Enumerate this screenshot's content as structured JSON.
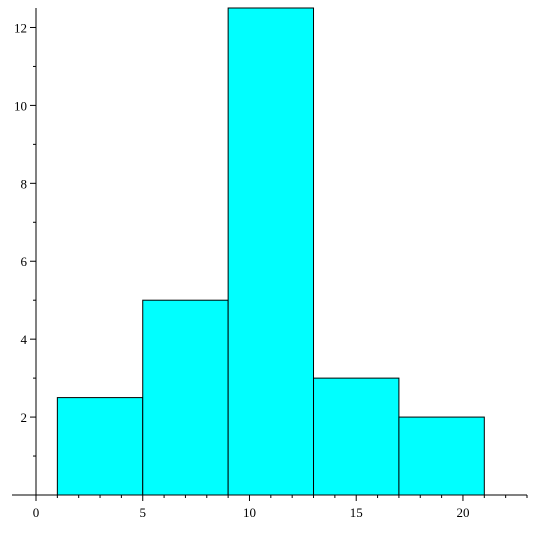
{
  "chart_data": {
    "type": "bar",
    "title": "",
    "xlabel": "",
    "ylabel": "",
    "bar_color": "#00FFFF",
    "bins": [
      {
        "start": 1,
        "end": 5,
        "value": 2.5
      },
      {
        "start": 5,
        "end": 9,
        "value": 5
      },
      {
        "start": 9,
        "end": 13,
        "value": 12.5
      },
      {
        "start": 13,
        "end": 17,
        "value": 3
      },
      {
        "start": 17,
        "end": 21,
        "value": 2
      }
    ],
    "xlim": [
      0,
      23
    ],
    "ylim": [
      0,
      12.5
    ],
    "x_ticks": [
      {
        "value": 0,
        "label": "0"
      },
      {
        "value": 5,
        "label": "5"
      },
      {
        "value": 10,
        "label": "10"
      },
      {
        "value": 15,
        "label": "15"
      },
      {
        "value": 20,
        "label": "20"
      }
    ],
    "y_ticks": [
      {
        "value": 2,
        "label": "2"
      },
      {
        "value": 4,
        "label": "4"
      },
      {
        "value": 6,
        "label": "6"
      },
      {
        "value": 8,
        "label": "8"
      },
      {
        "value": 10,
        "label": "10"
      },
      {
        "value": 12,
        "label": "12"
      }
    ],
    "grid": false,
    "legend": "none"
  }
}
